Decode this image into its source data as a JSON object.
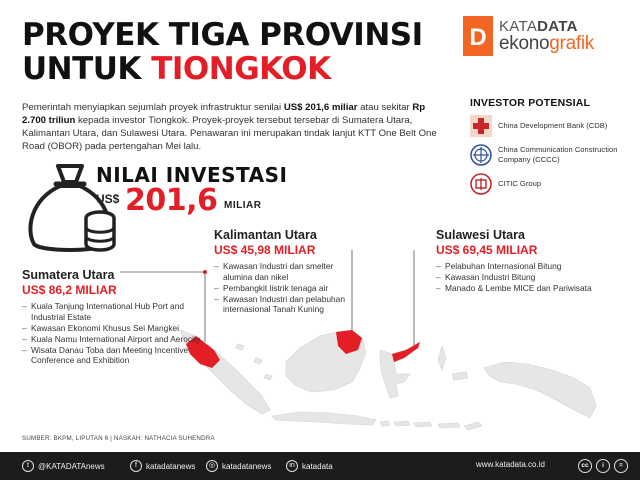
{
  "title": {
    "line1": "PROYEK TIGA PROVINSI",
    "line2_prefix": "UNTUK ",
    "line2_accent": "TIONGKOK"
  },
  "brand": {
    "kata": "KATA",
    "data": "DATA",
    "eko": "ekono",
    "grafik": "grafik",
    "letter": "D"
  },
  "intro": {
    "p1": "Pemerintah menyiapkan sejumlah proyek infrastruktur senilai ",
    "b1": "US$ 201,6 miliar",
    "p2": " atau sekitar ",
    "b2": "Rp 2.700 triliun",
    "p3": " kepada investor Tiongkok. Proyek-proyek tersebut tersebar di Sumatera Utara, Kalimantan Utara, dan Sulawesi Utara. Penawaran ini merupakan tindak lanjut KTT One Belt One Road (OBOR) pada pertengahan Mei lalu."
  },
  "investors": {
    "title": "INVESTOR POTENSIAL",
    "items": [
      {
        "name": "China Development Bank (CDB)",
        "icon": "cdb-logo-icon"
      },
      {
        "name": "China Communication Construction Company (CCCC)",
        "icon": "cccc-logo-icon"
      },
      {
        "name": "CITIC Group",
        "icon": "citic-logo-icon"
      }
    ]
  },
  "nilai": {
    "label": "NILAI INVESTASI",
    "currency": "US$",
    "value": "201,6",
    "unit": "MILIAR"
  },
  "regions": {
    "sumatera": {
      "name": "Sumatera Utara",
      "value": "US$ 86,2 MILIAR",
      "items": [
        "Kuala Tanjung International Hub Port and Industrial Estate",
        "Kawasan Ekonomi Khusus Sei Mangkei",
        "Kuala Namu International Airport and Aerocity",
        "Wisata Danau Toba dan Meeting Incentive Conference and Exhibition"
      ]
    },
    "kalimantan": {
      "name": "Kalimantan Utara",
      "value": "US$ 45,98 MILIAR",
      "items": [
        "Kawasan Industri dan smelter alumina dan nikel",
        "Pembangkit listrik tenaga air",
        "Kawasan Industri dan pelabuhan internasional Tanah Kuning"
      ]
    },
    "sulawesi": {
      "name": "Sulawesi Utara",
      "value": "US$ 69,45 MILIAR",
      "items": [
        "Pelabuhan Internasional Bitung",
        "Kawasan Industri Bitung",
        "Manado & Lembe MICE dan Pariwisata"
      ]
    }
  },
  "source": "SUMBER: BKPM, LIPUTAN 6 | NASKAH: NATHACIA SUHENDRA",
  "colors": {
    "accent": "#e41e26",
    "orange": "#f26522",
    "land": "#e6e6e6",
    "footer": "#1c1c1c"
  },
  "footer": {
    "social": [
      {
        "icon": "twitter-icon",
        "glyph": "t",
        "label": "@KATADATAnews"
      },
      {
        "icon": "facebook-icon",
        "glyph": "f",
        "label": "katadatanews"
      },
      {
        "icon": "instagram-icon",
        "glyph": "◎",
        "label": "katadatanews"
      },
      {
        "icon": "linkedin-icon",
        "glyph": "in",
        "label": "katadata"
      }
    ],
    "website": "www.katadata.co.id",
    "license": [
      "cc",
      "i",
      "="
    ]
  }
}
